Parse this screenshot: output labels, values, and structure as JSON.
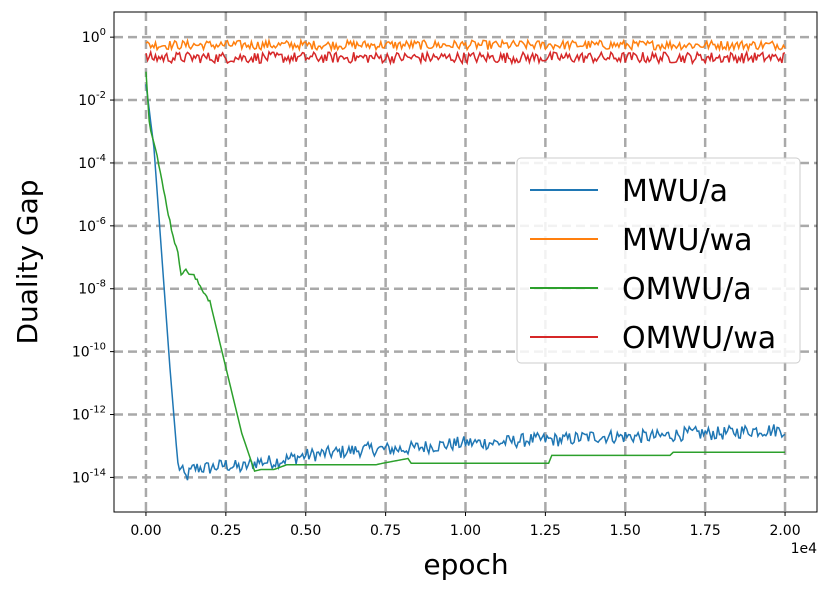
{
  "chart_data": {
    "type": "line",
    "xlabel": "epoch",
    "ylabel": "Duality Gap",
    "x_offset_label": "1e4",
    "x_scale_factor": 10000,
    "x_ticks": [
      0,
      2500,
      5000,
      7500,
      10000,
      12500,
      15000,
      17500,
      20000
    ],
    "x_tick_labels": [
      "0.00",
      "0.25",
      "0.50",
      "0.75",
      "1.00",
      "1.25",
      "1.50",
      "1.75",
      "2.00"
    ],
    "y_scale": "log",
    "y_tick_exponents": [
      0,
      -2,
      -4,
      -6,
      -8,
      -10,
      -12,
      -14
    ],
    "xlim": [
      -1000,
      21000
    ],
    "ylim_log10": [
      -15.1,
      0.8
    ],
    "grid": true,
    "legend_position": "center-right",
    "series": [
      {
        "name": "MWU/a",
        "color": "#1f77b4",
        "x": [
          0,
          250,
          500,
          750,
          1000,
          1250,
          1500,
          2000,
          2500,
          3000,
          3500,
          4000,
          5000,
          6000,
          7000,
          8000,
          9000,
          10000,
          11000,
          12000,
          13000,
          14000,
          15000,
          16000,
          17000,
          18000,
          19000,
          20000
        ],
        "log10_y": [
          -1.5,
          -3.5,
          -7.0,
          -10.5,
          -13.6,
          -14.0,
          -13.7,
          -13.7,
          -13.6,
          -13.7,
          -13.5,
          -13.5,
          -13.3,
          -13.2,
          -13.1,
          -13.1,
          -13.0,
          -12.9,
          -12.9,
          -12.8,
          -12.8,
          -12.7,
          -12.7,
          -12.7,
          -12.6,
          -12.6,
          -12.5,
          -12.5
        ],
        "noise": 0.22,
        "noise_start": 1000
      },
      {
        "name": "MWU/wa",
        "color": "#ff7f0e",
        "x": [
          0,
          5000,
          10000,
          15000,
          20000
        ],
        "log10_y": [
          -0.25,
          -0.25,
          -0.25,
          -0.25,
          -0.25
        ],
        "noise": 0.15,
        "noise_start": 0
      },
      {
        "name": "OMWU/a",
        "color": "#2ca02c",
        "x": [
          0,
          100,
          300,
          500,
          800,
          1000,
          1100,
          1200,
          1500,
          2000,
          2500,
          3000,
          3200,
          3400,
          3600,
          4000,
          4400,
          5000,
          6000,
          6400,
          7200,
          7400,
          8200,
          8300,
          9000,
          10000,
          11000,
          12600,
          12700,
          13000,
          14000,
          16400,
          16500,
          17000,
          18000,
          19000,
          20000
        ],
        "log10_y": [
          -1.1,
          -2.7,
          -3.5,
          -4.6,
          -6.1,
          -6.9,
          -7.5,
          -7.4,
          -7.6,
          -8.4,
          -10.5,
          -12.6,
          -13.2,
          -13.8,
          -13.75,
          -13.75,
          -13.6,
          -13.6,
          -13.6,
          -13.6,
          -13.6,
          -13.55,
          -13.4,
          -13.55,
          -13.55,
          -13.55,
          -13.55,
          -13.55,
          -13.3,
          -13.3,
          -13.3,
          -13.3,
          -13.2,
          -13.2,
          -13.2,
          -13.2,
          -13.2
        ],
        "noise": 0.07,
        "noise_start": 100,
        "noise_end": 2000
      },
      {
        "name": "OMWU/wa",
        "color": "#d62728",
        "x": [
          0,
          5000,
          10000,
          15000,
          20000
        ],
        "log10_y": [
          -0.65,
          -0.65,
          -0.65,
          -0.65,
          -0.65
        ],
        "noise": 0.18,
        "noise_start": 0
      }
    ]
  }
}
